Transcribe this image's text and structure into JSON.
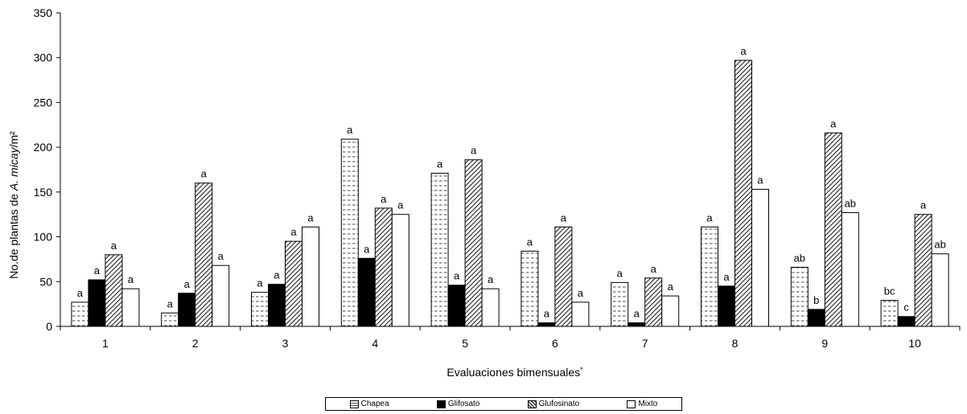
{
  "chart_data": {
    "type": "bar",
    "title": "",
    "xlabel": "Evaluaciones bimensuales",
    "xlabel_mark": "*",
    "ylabel": "No.de plantas de A. micay/m²",
    "ylabel_parts": {
      "prefix": "No.de plantas de ",
      "italic": "A. micay",
      "suffix": "/m²"
    },
    "ylim": [
      0,
      350
    ],
    "yticks": [
      0,
      50,
      100,
      150,
      200,
      250,
      300,
      350
    ],
    "categories": [
      "1",
      "2",
      "3",
      "4",
      "5",
      "6",
      "7",
      "8",
      "9",
      "10"
    ],
    "series": [
      {
        "name": "Chapea",
        "pattern": "dashes",
        "values": [
          27,
          15,
          38,
          209,
          171,
          84,
          49,
          111,
          66,
          29
        ],
        "labels": [
          "a",
          "a",
          "a",
          "a",
          "a",
          "a",
          "a",
          "a",
          "ab",
          "bc"
        ]
      },
      {
        "name": "Glifosato",
        "pattern": "solid-black",
        "values": [
          52,
          37,
          47,
          76,
          46,
          4,
          4,
          45,
          19,
          11
        ],
        "labels": [
          "a",
          "a",
          "a",
          "a",
          "a",
          "a",
          "a",
          "a",
          "b",
          "c"
        ]
      },
      {
        "name": "Glufosinato",
        "pattern": "diagonal",
        "values": [
          80,
          160,
          95,
          132,
          186,
          111,
          54,
          297,
          216,
          125
        ],
        "labels": [
          "a",
          "a",
          "a",
          "a",
          "a",
          "a",
          "a",
          "a",
          "a",
          "a"
        ]
      },
      {
        "name": "Mixto",
        "pattern": "white",
        "values": [
          42,
          68,
          111,
          125,
          42,
          27,
          34,
          153,
          127,
          81
        ],
        "labels": [
          "a",
          "a",
          "a",
          "a",
          "a",
          "a",
          "a",
          "a",
          "ab",
          "ab"
        ]
      }
    ],
    "legend_position": "bottom"
  },
  "legend": {
    "items": [
      {
        "label": "Chapea",
        "key": "chapea"
      },
      {
        "label": "Glifosato",
        "key": "glifosato"
      },
      {
        "label": "Glufosinato",
        "key": "glufosinato"
      },
      {
        "label": "Mixto",
        "key": "mixto"
      }
    ]
  }
}
